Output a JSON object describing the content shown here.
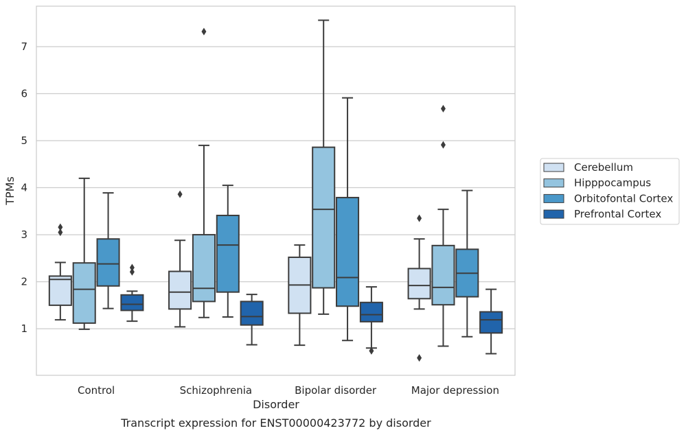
{
  "chart_data": {
    "type": "box",
    "caption": "Transcript expression for ENST00000423772 by disorder",
    "xlabel": "Disorder",
    "ylabel": "TPMs",
    "ylim": [
      0.01,
      7.86
    ],
    "yticks": [
      1,
      2,
      3,
      4,
      5,
      6,
      7
    ],
    "grid": "horizontal",
    "legend_position": "right",
    "categories": [
      "Control",
      "Schizophrenia",
      "Bipolar disorder",
      "Major depression"
    ],
    "series": [
      {
        "name": "Cerebellum",
        "color": "#d0e1f2",
        "boxes": [
          {
            "whisker_low": 1.19,
            "q1": 1.5,
            "median": 2.05,
            "q3": 2.12,
            "whisker_high": 2.41,
            "outliers": [
              3.05,
              3.16
            ]
          },
          {
            "whisker_low": 1.04,
            "q1": 1.42,
            "median": 1.78,
            "q3": 2.22,
            "whisker_high": 2.88,
            "outliers": [
              3.86
            ]
          },
          {
            "whisker_low": 0.65,
            "q1": 1.33,
            "median": 1.93,
            "q3": 2.52,
            "whisker_high": 2.78,
            "outliers": []
          },
          {
            "whisker_low": 1.42,
            "q1": 1.64,
            "median": 1.92,
            "q3": 2.28,
            "whisker_high": 2.91,
            "outliers": [
              0.38,
              3.35
            ]
          }
        ]
      },
      {
        "name": "Hipppocampus",
        "color": "#94c4df",
        "boxes": [
          {
            "whisker_low": 0.99,
            "q1": 1.12,
            "median": 1.84,
            "q3": 2.4,
            "whisker_high": 4.2,
            "outliers": []
          },
          {
            "whisker_low": 1.24,
            "q1": 1.58,
            "median": 1.86,
            "q3": 3.0,
            "whisker_high": 4.9,
            "outliers": [
              7.32
            ]
          },
          {
            "whisker_low": 1.31,
            "q1": 1.87,
            "median": 3.54,
            "q3": 4.86,
            "whisker_high": 7.56,
            "outliers": []
          },
          {
            "whisker_low": 0.63,
            "q1": 1.51,
            "median": 1.88,
            "q3": 2.77,
            "whisker_high": 3.54,
            "outliers": [
              4.91,
              5.68
            ]
          }
        ]
      },
      {
        "name": "Orbitofontal Cortex",
        "color": "#4a98c9",
        "boxes": [
          {
            "whisker_low": 1.43,
            "q1": 1.91,
            "median": 2.38,
            "q3": 2.91,
            "whisker_high": 3.89,
            "outliers": []
          },
          {
            "whisker_low": 1.25,
            "q1": 1.78,
            "median": 2.78,
            "q3": 3.41,
            "whisker_high": 4.05,
            "outliers": []
          },
          {
            "whisker_low": 0.75,
            "q1": 1.48,
            "median": 2.09,
            "q3": 3.79,
            "whisker_high": 5.91,
            "outliers": []
          },
          {
            "whisker_low": 0.83,
            "q1": 1.68,
            "median": 2.18,
            "q3": 2.69,
            "whisker_high": 3.94,
            "outliers": []
          }
        ]
      },
      {
        "name": "Prefrontal Cortex",
        "color": "#2164ab",
        "boxes": [
          {
            "whisker_low": 1.16,
            "q1": 1.39,
            "median": 1.52,
            "q3": 1.72,
            "whisker_high": 1.8,
            "outliers": [
              2.21,
              2.3
            ]
          },
          {
            "whisker_low": 0.66,
            "q1": 1.08,
            "median": 1.26,
            "q3": 1.58,
            "whisker_high": 1.73,
            "outliers": []
          },
          {
            "whisker_low": 0.59,
            "q1": 1.15,
            "median": 1.3,
            "q3": 1.56,
            "whisker_high": 1.89,
            "outliers": [
              0.53
            ]
          },
          {
            "whisker_low": 0.47,
            "q1": 0.91,
            "median": 1.19,
            "q3": 1.36,
            "whisker_high": 1.84,
            "outliers": []
          }
        ]
      }
    ]
  }
}
